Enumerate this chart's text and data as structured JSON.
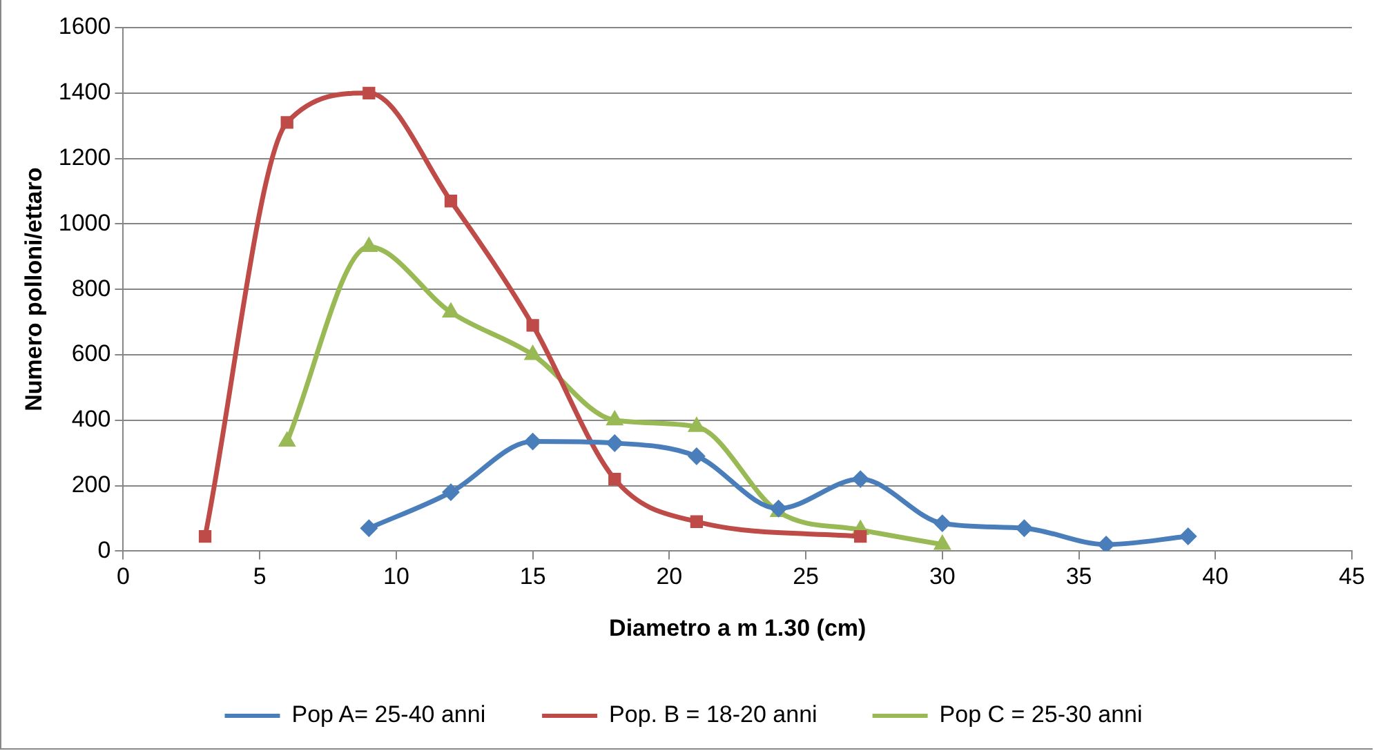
{
  "chart_data": {
    "type": "line",
    "xlabel": "Diametro a m 1.30 (cm)",
    "ylabel": "Numero polloni/ettaro",
    "xlim": [
      0,
      45
    ],
    "xticks": [
      0,
      5,
      10,
      15,
      20,
      25,
      30,
      35,
      40,
      45
    ],
    "ylim": [
      0,
      1600
    ],
    "yticks": [
      0,
      200,
      400,
      600,
      800,
      1000,
      1200,
      1400,
      1600
    ],
    "grid": "y",
    "legend": "bottom",
    "series": [
      {
        "name": "Pop A= 25-40 anni",
        "color": "#4a7ebb",
        "marker": "diamond",
        "x": [
          9,
          12,
          15,
          18,
          21,
          24,
          27,
          30,
          33,
          36,
          39
        ],
        "values": [
          70,
          180,
          335,
          330,
          290,
          130,
          220,
          85,
          70,
          20,
          45
        ]
      },
      {
        "name": "Pop. B = 18-20 anni",
        "color": "#be4b48",
        "marker": "square",
        "x": [
          3,
          6,
          9,
          12,
          15,
          18,
          21,
          27
        ],
        "values": [
          45,
          1310,
          1400,
          1070,
          690,
          220,
          90,
          45
        ]
      },
      {
        "name": "Pop C = 25-30 anni",
        "color": "#98b954",
        "marker": "triangle",
        "x": [
          6,
          9,
          12,
          15,
          18,
          21,
          24,
          27,
          30
        ],
        "values": [
          335,
          930,
          730,
          600,
          400,
          380,
          120,
          65,
          20
        ]
      }
    ]
  }
}
